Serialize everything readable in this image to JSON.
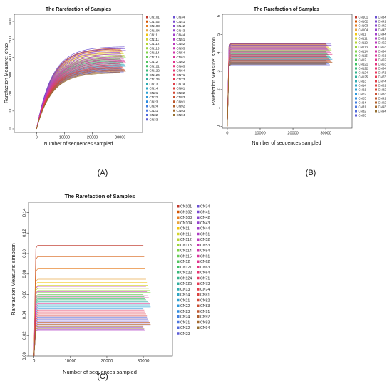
{
  "legend_labels": [
    "CN101",
    "CN102",
    "CN103",
    "CN104",
    "CN11",
    "CN111",
    "CN112",
    "CN113",
    "CN114",
    "CN115",
    "CN12",
    "CN121",
    "CN122",
    "CN124",
    "CN125",
    "CN13",
    "CN14",
    "CN21",
    "CN22",
    "CN23",
    "CN24",
    "CN31",
    "CN32",
    "CN33",
    "CN34",
    "CN41",
    "CN42",
    "CN43",
    "CN44",
    "CN51",
    "CN52",
    "CN53",
    "CN54",
    "CN61",
    "CN62",
    "CN63",
    "CN64",
    "CN71",
    "CN73",
    "CN74",
    "CN81",
    "CN82",
    "CN83",
    "CN91",
    "CN92",
    "CN93",
    "CN94"
  ],
  "legend_colors": [
    "#c0392b",
    "#d35400",
    "#e67e22",
    "#e8a33d",
    "#f1c40f",
    "#d4d42a",
    "#b5d334",
    "#9bd43b",
    "#7ed348",
    "#66cc55",
    "#50c65e",
    "#3cbf63",
    "#35b877",
    "#33b38c",
    "#30ae9f",
    "#2eabb2",
    "#2ca6c4",
    "#2aa1d4",
    "#2a97dc",
    "#2b8be0",
    "#3f7fe0",
    "#4a76e0",
    "#4f69dc",
    "#5b5bd6",
    "#6a50d2",
    "#784ad0",
    "#8746ce",
    "#9442cc",
    "#a23fc9",
    "#ae3cc4",
    "#bb3abd",
    "#c638b4",
    "#d036a9",
    "#d9349c",
    "#e0338e",
    "#e4337f",
    "#e63570",
    "#e83861",
    "#e63b54",
    "#e23e48",
    "#db423d",
    "#d34835",
    "#c94f30",
    "#bd572e",
    "#b0602d",
    "#a3692d",
    "#956f30"
  ],
  "chart_data": [
    {
      "panel": "A",
      "type": "line",
      "title": "The Rarefaction of Samples",
      "xlabel": "Number of sequences sampled",
      "ylabel": "Rarefaction Measure: chao",
      "xlim": [
        -8000,
        38000
      ],
      "ylim": [
        -20,
        640
      ],
      "x_ticks": [
        0,
        10000,
        20000,
        30000
      ],
      "y_ticks": [
        0,
        100,
        200,
        300,
        400,
        500,
        600
      ],
      "curve_shape": "saturating",
      "series_end_values": [
        450,
        445,
        440,
        432,
        425,
        420,
        412,
        405,
        398,
        392,
        388,
        382,
        378,
        372,
        366,
        360,
        355,
        350,
        345,
        340,
        335,
        330,
        325,
        318,
        458,
        448,
        438,
        428,
        418,
        410,
        402,
        396,
        390,
        384,
        376,
        370,
        364,
        358,
        352,
        346,
        342,
        338,
        332,
        328,
        322,
        316,
        312
      ],
      "x_end": 30000,
      "caption": "(A)"
    },
    {
      "panel": "B",
      "type": "line",
      "title": "The Rarefaction of Samples",
      "xlabel": "Number of sequences sampled",
      "ylabel": "Rarefaction Measure: shannon",
      "xlim": [
        -1500,
        38000
      ],
      "ylim": [
        -0.1,
        6.1
      ],
      "x_ticks": [
        0,
        10000,
        20000,
        30000
      ],
      "y_ticks": [
        0,
        1,
        2,
        3,
        4,
        5,
        6
      ],
      "curve_shape": "plateau",
      "series_end_values": [
        4.5,
        4.45,
        4.4,
        4.35,
        4.3,
        4.25,
        4.2,
        4.15,
        4.1,
        4.05,
        4.0,
        3.95,
        3.9,
        3.85,
        3.8,
        3.75,
        3.7,
        3.65,
        3.6,
        3.55,
        3.5,
        3.45,
        3.4,
        3.35,
        4.48,
        4.42,
        4.38,
        4.32,
        4.28,
        4.22,
        4.18,
        4.12,
        4.08,
        4.02,
        3.98,
        3.92,
        3.88,
        3.82,
        3.78,
        3.72,
        3.68,
        3.62,
        3.58,
        3.52,
        3.48,
        3.42,
        3.38
      ],
      "x_end": 30000,
      "caption": "(B)"
    },
    {
      "panel": "C",
      "type": "line",
      "title": "The Rarefaction of Samples",
      "xlabel": "Number of sequences sampled",
      "ylabel": "Rarefaction Measure: simpson",
      "xlim": [
        -1500,
        38000
      ],
      "ylim": [
        0,
        0.15
      ],
      "x_ticks": [
        0,
        10000,
        20000,
        30000
      ],
      "y_ticks": [
        0.0,
        0.02,
        0.04,
        0.06,
        0.08,
        0.1,
        0.12,
        0.14
      ],
      "curve_shape": "plateau",
      "series_end_values": [
        0.108,
        0.097,
        0.085,
        0.075,
        0.072,
        0.069,
        0.066,
        0.064,
        0.062,
        0.06,
        0.058,
        0.056,
        0.055,
        0.054,
        0.053,
        0.052,
        0.05,
        0.048,
        0.046,
        0.044,
        0.042,
        0.04,
        0.038,
        0.036,
        0.034,
        0.032,
        0.03,
        0.028,
        0.026,
        0.025,
        0.068,
        0.063,
        0.059,
        0.057,
        0.051,
        0.049,
        0.047,
        0.045,
        0.043,
        0.041,
        0.039,
        0.037,
        0.035,
        0.033,
        0.031,
        0.029,
        0.027
      ],
      "x_end": 30000,
      "caption": "(C)"
    }
  ]
}
